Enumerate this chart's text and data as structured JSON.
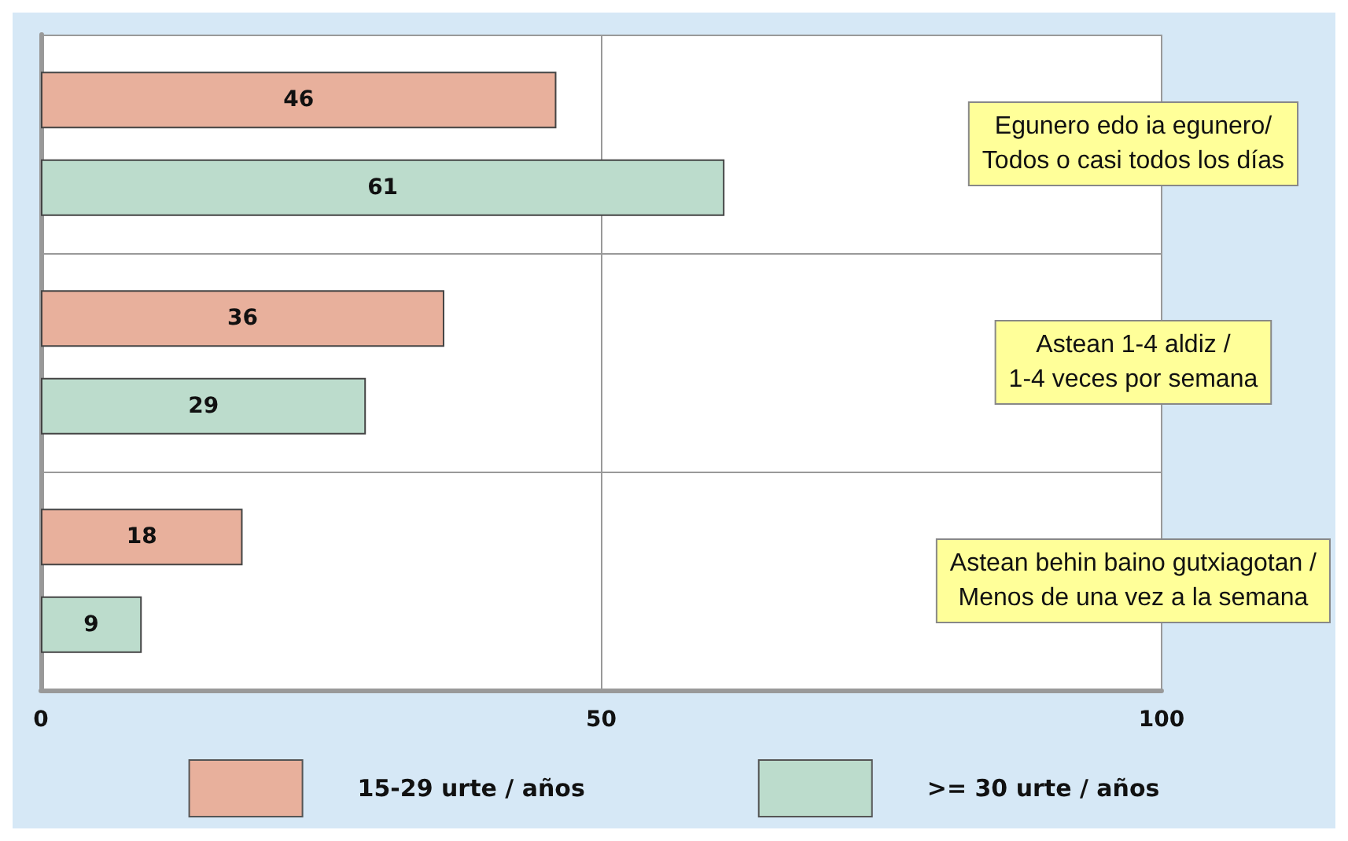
{
  "chart_data": {
    "type": "bar",
    "orientation": "horizontal",
    "categories": [
      "Egunero edo ia egunero/\nTodos o casi todos los días",
      "Astean 1-4 aldiz /\n1-4 veces por semana",
      "Astean behin baino gutxiagotan /\nMenos de una vez a la semana"
    ],
    "series": [
      {
        "name": "15-29 urte / años",
        "color": "#e8b09c",
        "values": [
          46,
          36,
          18
        ]
      },
      {
        "name": ">= 30 urte / años",
        "color": "#bcdccc",
        "values": [
          61,
          29,
          9
        ]
      }
    ],
    "xlim": [
      0,
      100
    ],
    "xticks": [
      0,
      50,
      100
    ],
    "data_labels": true,
    "grid": true,
    "legend": "bottom"
  }
}
